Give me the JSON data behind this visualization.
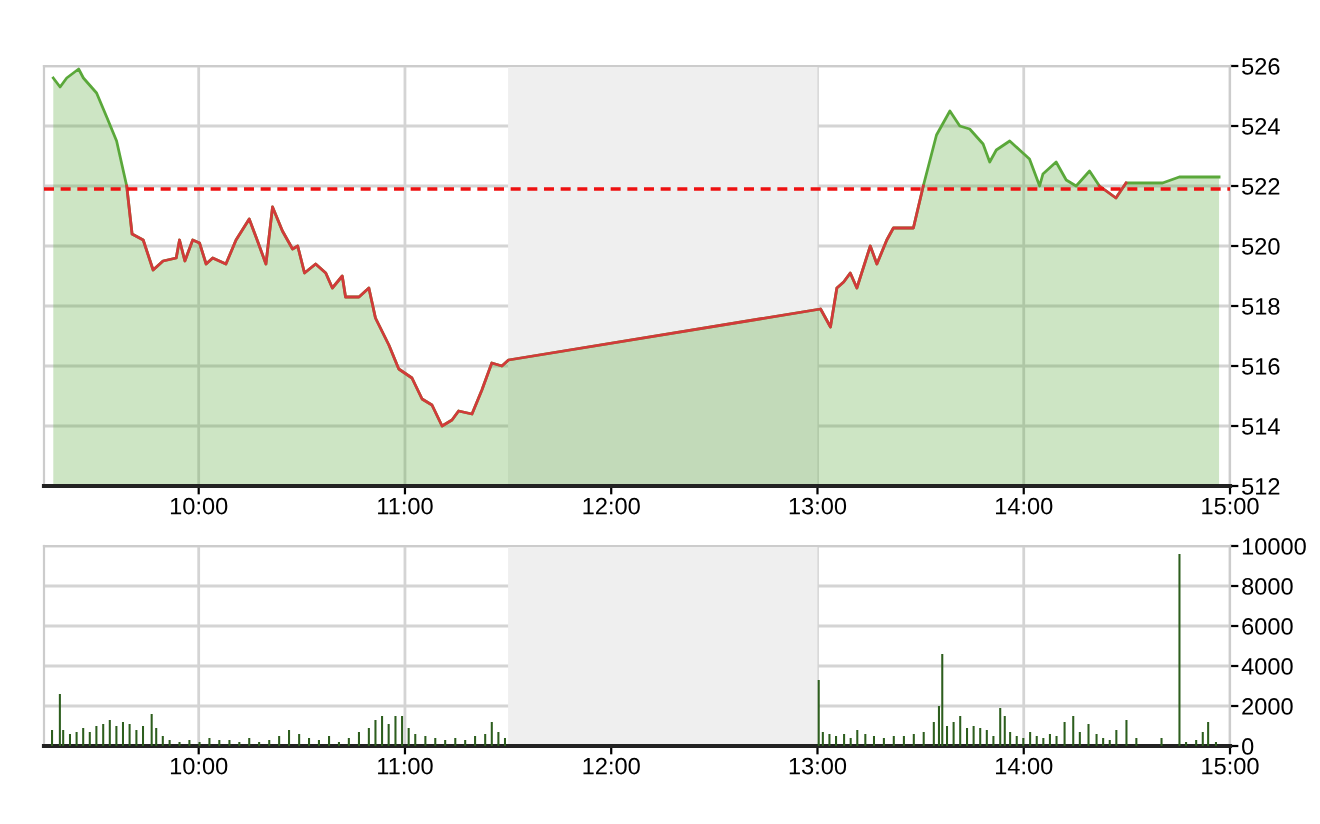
{
  "chart_data": [
    {
      "type": "area",
      "x": [
        9.295,
        9.328,
        9.36,
        9.418,
        9.441,
        9.505,
        9.554,
        9.602,
        9.651,
        9.677,
        9.731,
        9.779,
        9.827,
        9.891,
        9.907,
        9.933,
        9.971,
        10.004,
        10.036,
        10.068,
        10.132,
        10.181,
        10.245,
        10.278,
        10.326,
        10.358,
        10.406,
        10.455,
        10.48,
        10.513,
        10.567,
        10.616,
        10.648,
        10.696,
        10.712,
        10.777,
        10.825,
        10.857,
        10.922,
        10.97,
        11.034,
        11.083,
        11.131,
        11.18,
        11.228,
        11.26,
        11.325,
        11.373,
        11.421,
        11.47,
        11.502,
        13.015,
        13.063,
        13.094,
        13.127,
        13.159,
        13.191,
        13.256,
        13.288,
        13.336,
        13.368,
        13.465,
        13.513,
        13.577,
        13.642,
        13.69,
        13.738,
        13.803,
        13.835,
        13.867,
        13.932,
        13.98,
        14.028,
        14.077,
        14.093,
        14.157,
        14.206,
        14.254,
        14.319,
        14.367,
        14.447,
        14.496,
        14.673,
        14.754,
        14.947
      ],
      "series": [
        {
          "type": "area",
          "color": "#5aa83a",
          "values": [
            525.6,
            525.3,
            525.6,
            525.9,
            525.6,
            525.1,
            524.3,
            523.5,
            522.0,
            520.4,
            520.2,
            519.2,
            519.5,
            519.6,
            520.2,
            519.5,
            520.2,
            520.1,
            519.4,
            519.6,
            519.4,
            520.2,
            520.9,
            520.3,
            519.4,
            521.3,
            520.5,
            519.9,
            520.0,
            519.1,
            519.4,
            519.1,
            518.6,
            519.0,
            518.3,
            518.3,
            518.6,
            517.6,
            516.7,
            515.9,
            515.6,
            514.9,
            514.7,
            514.0,
            514.2,
            514.5,
            514.4,
            515.2,
            516.1,
            516.0,
            516.2,
            517.9,
            517.3,
            518.6,
            518.8,
            519.1,
            518.6,
            520.0,
            519.4,
            520.2,
            520.6,
            520.6,
            522.0,
            523.7,
            524.5,
            524.0,
            523.9,
            523.4,
            522.8,
            523.2,
            523.5,
            523.2,
            522.9,
            522.0,
            522.4,
            522.8,
            522.2,
            522.0,
            522.5,
            522.0,
            521.6,
            522.1,
            522.1,
            522.3,
            522.3
          ]
        },
        {
          "type": "line",
          "color": "#d23a3a",
          "values": [
            null,
            null,
            null,
            null,
            null,
            null,
            null,
            null,
            522.0,
            520.4,
            520.2,
            519.2,
            519.5,
            519.6,
            520.2,
            519.5,
            520.2,
            520.1,
            519.4,
            519.6,
            519.4,
            520.2,
            520.9,
            520.3,
            519.4,
            521.3,
            520.5,
            519.9,
            520.0,
            519.1,
            519.4,
            519.1,
            518.6,
            519.0,
            518.3,
            518.3,
            518.6,
            517.6,
            516.7,
            515.9,
            515.6,
            514.9,
            514.7,
            514.0,
            514.2,
            514.5,
            514.4,
            515.2,
            516.1,
            516.0,
            516.2,
            517.9,
            517.3,
            518.6,
            518.8,
            519.1,
            518.6,
            520.0,
            519.4,
            520.2,
            520.6,
            520.6,
            522.0,
            null,
            null,
            null,
            null,
            null,
            null,
            null,
            null,
            null,
            null,
            null,
            null,
            null,
            null,
            null,
            null,
            522.0,
            521.6,
            522.1,
            null,
            null,
            null
          ]
        }
      ],
      "xlim": [
        9.25,
        15
      ],
      "xticks": [
        {
          "value": 10,
          "label": "10:00"
        },
        {
          "value": 11,
          "label": "11:00"
        },
        {
          "value": 12,
          "label": "12:00"
        },
        {
          "value": 13,
          "label": "13:00"
        },
        {
          "value": 14,
          "label": "14:00"
        },
        {
          "value": 15,
          "label": "15:00"
        }
      ],
      "ylim": [
        512,
        526
      ],
      "yticks": [
        512,
        514,
        516,
        518,
        520,
        522,
        524,
        526
      ],
      "grid": true,
      "legend": false,
      "ref_lines": [
        {
          "axis": "y",
          "value": 521.9,
          "color": "#ee1111",
          "line_style": "dashed"
        }
      ],
      "bands": [
        {
          "axis": "x",
          "from": 11.5,
          "to": 13,
          "color": "#efefef"
        }
      ]
    },
    {
      "type": "bar",
      "color": "#2d5e1e",
      "x": [
        9.289,
        9.327,
        9.343,
        9.376,
        9.408,
        9.44,
        9.472,
        9.504,
        9.537,
        9.569,
        9.601,
        9.633,
        9.665,
        9.698,
        9.73,
        9.772,
        9.794,
        9.826,
        9.859,
        9.907,
        9.955,
        10.004,
        10.052,
        10.1,
        10.149,
        10.197,
        10.245,
        10.293,
        10.342,
        10.39,
        10.438,
        10.487,
        10.535,
        10.583,
        10.632,
        10.68,
        10.728,
        10.777,
        10.825,
        10.857,
        10.889,
        10.921,
        10.954,
        10.986,
        11.018,
        11.05,
        11.099,
        11.147,
        11.195,
        11.244,
        11.292,
        11.34,
        11.389,
        11.421,
        11.453,
        11.485,
        13.006,
        13.026,
        13.058,
        13.09,
        13.129,
        13.161,
        13.193,
        13.232,
        13.274,
        13.322,
        13.37,
        13.419,
        13.467,
        13.515,
        13.564,
        13.589,
        13.605,
        13.628,
        13.66,
        13.692,
        13.725,
        13.757,
        13.789,
        13.821,
        13.853,
        13.886,
        13.908,
        13.934,
        13.966,
        13.998,
        14.031,
        14.063,
        14.095,
        14.127,
        14.159,
        14.198,
        14.24,
        14.272,
        14.314,
        14.353,
        14.385,
        14.417,
        14.449,
        14.498,
        14.546,
        14.668,
        14.755,
        14.787,
        14.836,
        14.868,
        14.894,
        14.932
      ],
      "values": [
        800,
        2600,
        800,
        600,
        700,
        900,
        700,
        1000,
        1100,
        1300,
        1000,
        1200,
        1100,
        800,
        1000,
        1600,
        900,
        500,
        300,
        200,
        300,
        200,
        400,
        300,
        300,
        200,
        400,
        200,
        300,
        500,
        800,
        600,
        400,
        300,
        500,
        200,
        400,
        700,
        900,
        1300,
        1500,
        1100,
        1500,
        1500,
        900,
        600,
        500,
        400,
        300,
        400,
        300,
        500,
        600,
        1200,
        700,
        400,
        3300,
        700,
        600,
        500,
        600,
        400,
        800,
        600,
        500,
        400,
        500,
        500,
        600,
        700,
        1200,
        2000,
        4600,
        1000,
        1200,
        1500,
        900,
        1000,
        900,
        800,
        500,
        1900,
        1500,
        700,
        500,
        400,
        700,
        500,
        400,
        600,
        500,
        1200,
        1500,
        700,
        1100,
        600,
        400,
        300,
        800,
        1300,
        400,
        400,
        9600,
        200,
        300,
        700,
        1200,
        200
      ],
      "xlim": [
        9.25,
        15
      ],
      "xticks": [
        {
          "value": 10,
          "label": "10:00"
        },
        {
          "value": 11,
          "label": "11:00"
        },
        {
          "value": 12,
          "label": "12:00"
        },
        {
          "value": 13,
          "label": "13:00"
        },
        {
          "value": 14,
          "label": "14:00"
        },
        {
          "value": 15,
          "label": "15:00"
        }
      ],
      "ylim": [
        0,
        10000
      ],
      "yticks": [
        0,
        2000,
        4000,
        6000,
        8000,
        10000
      ],
      "grid": true,
      "legend": false,
      "bands": [
        {
          "axis": "x",
          "from": 11.5,
          "to": 13,
          "color": "#efefef"
        }
      ]
    }
  ]
}
